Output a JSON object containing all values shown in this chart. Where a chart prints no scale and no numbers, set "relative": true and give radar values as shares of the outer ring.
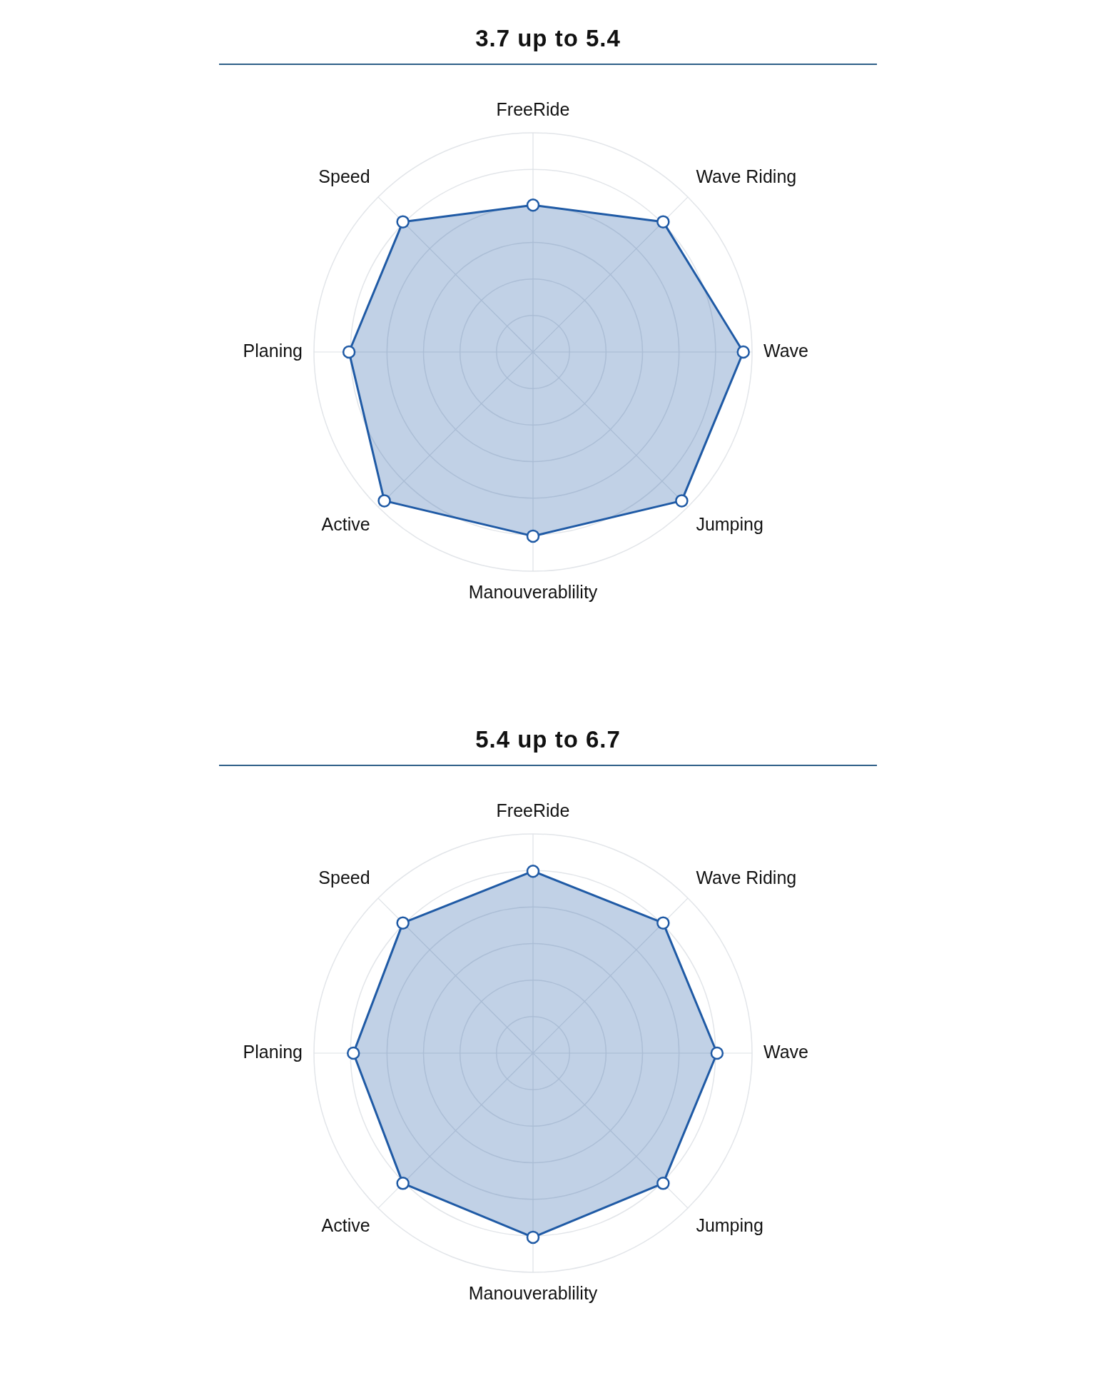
{
  "chart_data": [
    {
      "type": "radar",
      "title": "3.7 up to 5.4",
      "categories": [
        "FreeRide",
        "Wave Riding",
        "Wave",
        "Jumping",
        "Manouverablility",
        "Active",
        "Planing",
        "Speed"
      ],
      "relative": true,
      "grid": true,
      "marker": "circle",
      "series": [
        {
          "color": "#1f5aa5",
          "values": [
            0.67,
            0.84,
            0.96,
            0.96,
            0.84,
            0.96,
            0.84,
            0.84
          ]
        }
      ]
    },
    {
      "type": "radar",
      "title": "5.4 up to 6.7",
      "categories": [
        "FreeRide",
        "Wave Riding",
        "Wave",
        "Jumping",
        "Manouverablility",
        "Active",
        "Planing",
        "Speed"
      ],
      "relative": true,
      "grid": true,
      "marker": "circle",
      "series": [
        {
          "color": "#1f5aa5",
          "values": [
            0.83,
            0.84,
            0.84,
            0.84,
            0.84,
            0.84,
            0.82,
            0.84
          ]
        }
      ]
    }
  ]
}
